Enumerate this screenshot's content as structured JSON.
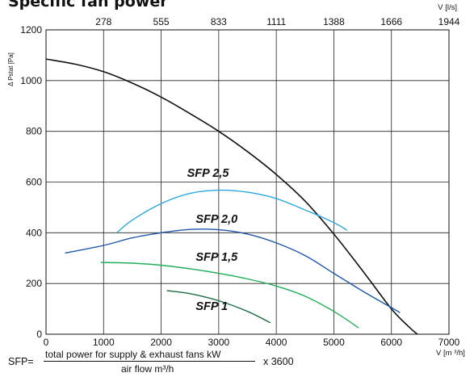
{
  "title": "Specific fan power",
  "formula": {
    "lhs": "SFP=",
    "numerator": "total power for supply & exhaust fans kW",
    "denominator": "air flow m³/h",
    "multiplier": "x 3600"
  },
  "chart_data": {
    "type": "line",
    "xlabel": "V [m ³/h]",
    "ylabel": "Δ Pstat [Pa]",
    "x2label": "V [l/s]",
    "xlim": [
      0,
      7000
    ],
    "ylim": [
      0,
      1200
    ],
    "xticks": [
      "0",
      "1000",
      "2000",
      "3000",
      "4000",
      "5000",
      "6000",
      "7000"
    ],
    "yticks": [
      "0",
      "200",
      "400",
      "600",
      "800",
      "1000",
      "1200"
    ],
    "x2ticks": [
      {
        "label": "278",
        "m3h": 1000
      },
      {
        "label": "555",
        "m3h": 2000
      },
      {
        "label": "833",
        "m3h": 3000
      },
      {
        "label": "1111",
        "m3h": 4000
      },
      {
        "label": "1388",
        "m3h": 5000
      },
      {
        "label": "1666",
        "m3h": 6000
      },
      {
        "label": "1944",
        "m3h": 7000
      }
    ],
    "grid": true,
    "series": [
      {
        "name": "",
        "color": "#111111",
        "x": [
          0,
          500,
          1000,
          1500,
          2000,
          2500,
          3000,
          3500,
          4000,
          4500,
          5000,
          5500,
          6000,
          6300,
          6450
        ],
        "y": [
          1085,
          1065,
          1035,
          990,
          935,
          870,
          800,
          720,
          630,
          525,
          395,
          250,
          100,
          30,
          0
        ]
      },
      {
        "name": "SFP 2,5",
        "color": "#2aa8e0",
        "x": [
          1230,
          1500,
          2000,
          2500,
          3000,
          3500,
          4000,
          4500,
          5000,
          5230
        ],
        "y": [
          400,
          450,
          515,
          555,
          568,
          560,
          535,
          490,
          440,
          410
        ]
      },
      {
        "name": "SFP 2,0",
        "color": "#1f57a8",
        "x": [
          330,
          1000,
          1500,
          2000,
          2500,
          3000,
          3500,
          4000,
          4500,
          5000,
          5500,
          6000,
          6150
        ],
        "y": [
          320,
          350,
          380,
          400,
          413,
          412,
          395,
          360,
          310,
          240,
          170,
          105,
          85
        ]
      },
      {
        "name": "SFP 1,5",
        "color": "#1fae58",
        "x": [
          950,
          1500,
          2000,
          2500,
          3000,
          3500,
          4000,
          4500,
          5000,
          5430
        ],
        "y": [
          283,
          280,
          272,
          258,
          240,
          218,
          190,
          150,
          90,
          25
        ]
      },
      {
        "name": "SFP 1",
        "color": "#1f6e45",
        "x": [
          2100,
          2500,
          3000,
          3500,
          3900
        ],
        "y": [
          172,
          160,
          132,
          90,
          45
        ]
      }
    ],
    "annotations": [
      {
        "text": "SFP 2,5",
        "x": 2450,
        "y": 620
      },
      {
        "text": "SFP 2,0",
        "x": 2600,
        "y": 440
      },
      {
        "text": "SFP 1,5",
        "x": 2600,
        "y": 290
      },
      {
        "text": "SFP 1",
        "x": 2600,
        "y": 95
      }
    ]
  }
}
